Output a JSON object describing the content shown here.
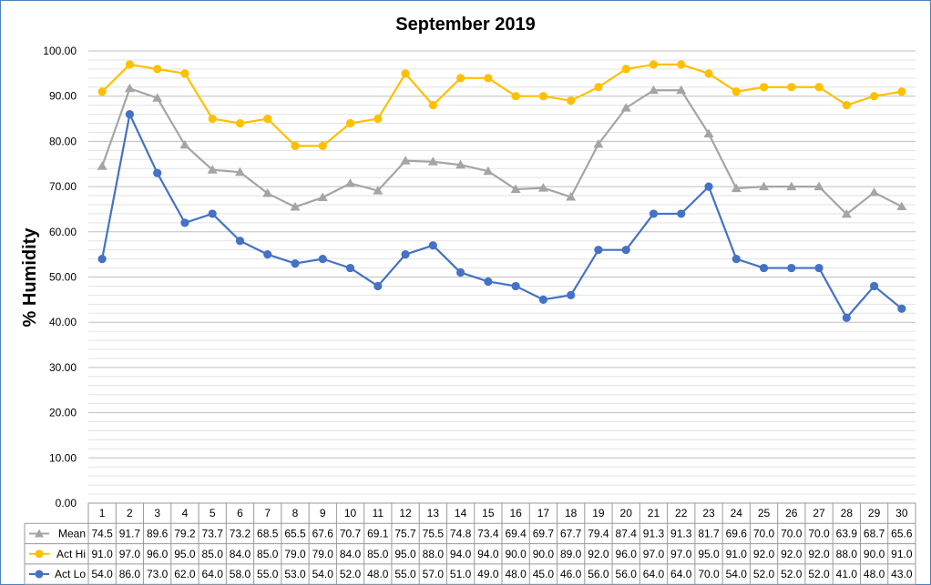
{
  "chart_data": {
    "type": "line",
    "title": "September 2019",
    "xlabel": "",
    "ylabel": "% Humidity",
    "ylim": [
      0,
      100
    ],
    "y_ticks": [
      "0.00",
      "10.00",
      "20.00",
      "30.00",
      "40.00",
      "50.00",
      "60.00",
      "70.00",
      "80.00",
      "90.00",
      "100.00"
    ],
    "grid": "on",
    "legend": "data-table-left",
    "categories": [
      "1",
      "2",
      "3",
      "4",
      "5",
      "6",
      "7",
      "8",
      "9",
      "10",
      "11",
      "12",
      "13",
      "14",
      "15",
      "16",
      "17",
      "18",
      "19",
      "20",
      "21",
      "22",
      "23",
      "24",
      "25",
      "26",
      "27",
      "28",
      "29",
      "30"
    ],
    "series": [
      {
        "name": "Mean",
        "color": "#a5a5a5",
        "marker": "triangle",
        "values": [
          74.5,
          91.7,
          89.6,
          79.2,
          73.7,
          73.2,
          68.5,
          65.5,
          67.6,
          70.7,
          69.1,
          75.7,
          75.5,
          74.8,
          73.4,
          69.4,
          69.7,
          67.7,
          79.4,
          87.4,
          91.3,
          91.3,
          81.7,
          69.6,
          70.0,
          70.0,
          70.0,
          63.9,
          68.7,
          65.6
        ]
      },
      {
        "name": "Act Hi",
        "color": "#ffc000",
        "marker": "circle",
        "values": [
          91.0,
          97.0,
          96.0,
          95.0,
          85.0,
          84.0,
          85.0,
          79.0,
          79.0,
          84.0,
          85.0,
          95.0,
          88.0,
          94.0,
          94.0,
          90.0,
          90.0,
          89.0,
          92.0,
          96.0,
          97.0,
          97.0,
          95.0,
          91.0,
          92.0,
          92.0,
          92.0,
          88.0,
          90.0,
          91.0
        ]
      },
      {
        "name": "Act Lo",
        "color": "#4472c4",
        "marker": "circle",
        "values": [
          54.0,
          86.0,
          73.0,
          62.0,
          64.0,
          58.0,
          55.0,
          53.0,
          54.0,
          52.0,
          48.0,
          55.0,
          57.0,
          51.0,
          49.0,
          48.0,
          45.0,
          46.0,
          56.0,
          56.0,
          64.0,
          64.0,
          70.0,
          54.0,
          52.0,
          52.0,
          52.0,
          41.0,
          48.0,
          43.0
        ]
      }
    ]
  }
}
